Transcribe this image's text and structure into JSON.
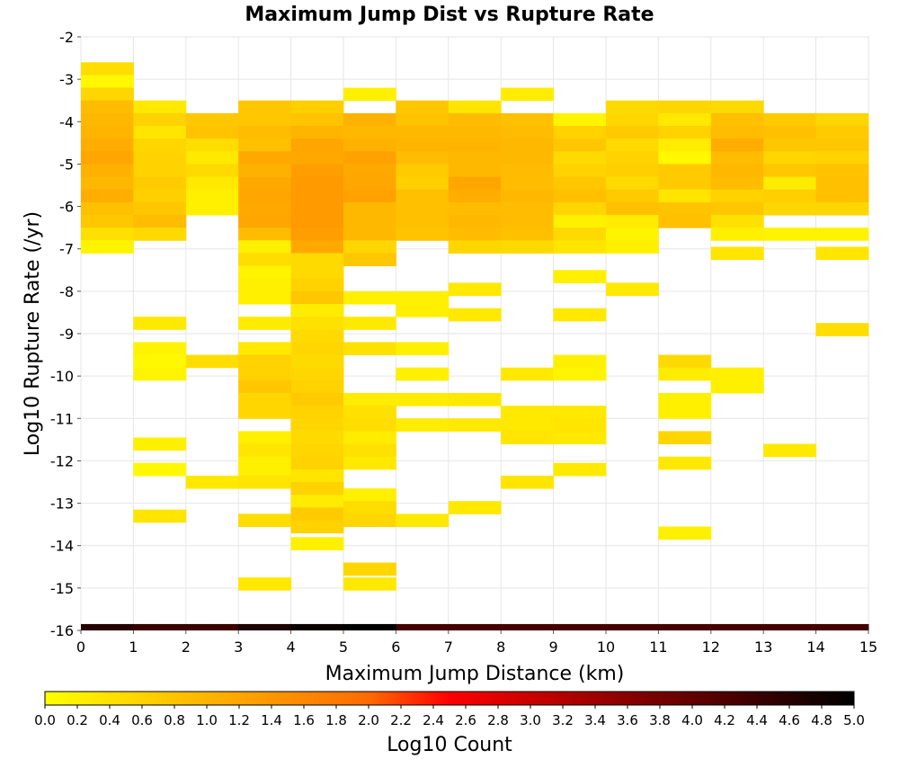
{
  "chart_data": {
    "type": "heatmap",
    "title": "Maximum Jump Dist vs Rupture Rate",
    "xlabel": "Maximum Jump Distance (km)",
    "ylabel": "Log10 Rupture Rate (/yr)",
    "xlim": [
      0,
      15
    ],
    "ylim": [
      -16,
      -2
    ],
    "x_bin_width": 1,
    "y_bin_height": 0.3,
    "grid": true,
    "xticks": [
      "0",
      "1",
      "2",
      "3",
      "4",
      "5",
      "6",
      "7",
      "8",
      "9",
      "10",
      "11",
      "12",
      "13",
      "14",
      "15"
    ],
    "yticks": [
      "-2",
      "-3",
      "-4",
      "-5",
      "-6",
      "-7",
      "-8",
      "-9",
      "-10",
      "-11",
      "-12",
      "-13",
      "-14",
      "-15",
      "-16"
    ],
    "colorbar": {
      "label": "Log10 Count",
      "range": [
        0,
        5
      ],
      "ticks": [
        "0.0",
        "0.2",
        "0.4",
        "0.6",
        "0.8",
        "1.0",
        "1.2",
        "1.4",
        "1.6",
        "1.8",
        "2.0",
        "2.2",
        "2.4",
        "2.6",
        "2.8",
        "3.0",
        "3.2",
        "3.4",
        "3.6",
        "3.8",
        "4.0",
        "4.2",
        "4.4",
        "4.6",
        "4.8",
        "5.0"
      ],
      "placement": "bottom"
    },
    "columns": [
      {
        "x0": 0,
        "cells": [
          [
            -2.75,
            0.45
          ],
          [
            -3.05,
            0.1
          ],
          [
            -3.35,
            0.55
          ],
          [
            -3.65,
            0.9
          ],
          [
            -3.95,
            0.95
          ],
          [
            -4.25,
            1.0
          ],
          [
            -4.55,
            1.1
          ],
          [
            -4.85,
            1.2
          ],
          [
            -5.15,
            1.05
          ],
          [
            -5.45,
            0.95
          ],
          [
            -5.75,
            1.1
          ],
          [
            -6.05,
            0.85
          ],
          [
            -6.35,
            0.75
          ],
          [
            -6.65,
            0.4
          ],
          [
            -6.95,
            0.15
          ]
        ]
      },
      {
        "x0": 1,
        "cells": [
          [
            -3.65,
            0.3
          ],
          [
            -3.95,
            0.6
          ],
          [
            -4.25,
            0.35
          ],
          [
            -4.55,
            0.55
          ],
          [
            -4.85,
            0.6
          ],
          [
            -5.15,
            0.6
          ],
          [
            -5.45,
            0.7
          ],
          [
            -5.75,
            0.65
          ],
          [
            -6.05,
            0.75
          ],
          [
            -6.35,
            0.9
          ],
          [
            -6.65,
            0.5
          ],
          [
            -8.75,
            0.3
          ],
          [
            -9.35,
            0.15
          ],
          [
            -9.65,
            0.1
          ],
          [
            -9.95,
            0.15
          ],
          [
            -11.6,
            0.2
          ],
          [
            -12.2,
            0.1
          ],
          [
            -13.3,
            0.35
          ]
        ]
      },
      {
        "x0": 2,
        "cells": [
          [
            -3.95,
            0.75
          ],
          [
            -4.25,
            0.8
          ],
          [
            -4.55,
            0.45
          ],
          [
            -4.85,
            0.3
          ],
          [
            -5.15,
            0.5
          ],
          [
            -5.45,
            0.3
          ],
          [
            -5.75,
            0.2
          ],
          [
            -6.05,
            0.2
          ],
          [
            -9.65,
            0.45
          ],
          [
            -12.5,
            0.3
          ]
        ]
      },
      {
        "x0": 3,
        "cells": [
          [
            -3.65,
            0.75
          ],
          [
            -3.95,
            0.75
          ],
          [
            -4.25,
            0.9
          ],
          [
            -4.55,
            0.85
          ],
          [
            -4.85,
            1.15
          ],
          [
            -5.15,
            1.05
          ],
          [
            -5.45,
            1.15
          ],
          [
            -5.75,
            1.2
          ],
          [
            -6.05,
            1.15
          ],
          [
            -6.35,
            1.2
          ],
          [
            -6.65,
            0.9
          ],
          [
            -6.95,
            0.2
          ],
          [
            -7.25,
            0.45
          ],
          [
            -7.55,
            0.15
          ],
          [
            -7.85,
            0.2
          ],
          [
            -8.15,
            0.2
          ],
          [
            -8.75,
            0.25
          ],
          [
            -9.35,
            0.3
          ],
          [
            -9.65,
            0.6
          ],
          [
            -9.95,
            0.6
          ],
          [
            -10.25,
            0.75
          ],
          [
            -10.55,
            0.55
          ],
          [
            -10.85,
            0.55
          ],
          [
            -11.45,
            0.2
          ],
          [
            -11.75,
            0.35
          ],
          [
            -12.05,
            0.2
          ],
          [
            -12.35,
            0.2
          ],
          [
            -12.5,
            0.35
          ],
          [
            -13.4,
            0.45
          ],
          [
            -14.9,
            0.3
          ]
        ]
      },
      {
        "x0": 4,
        "cells": [
          [
            -3.65,
            0.65
          ],
          [
            -3.95,
            0.8
          ],
          [
            -4.25,
            1.0
          ],
          [
            -4.55,
            1.2
          ],
          [
            -4.85,
            1.15
          ],
          [
            -5.15,
            1.3
          ],
          [
            -5.45,
            1.35
          ],
          [
            -5.75,
            1.35
          ],
          [
            -6.05,
            1.35
          ],
          [
            -6.35,
            1.35
          ],
          [
            -6.65,
            1.3
          ],
          [
            -6.95,
            1.15
          ],
          [
            -7.25,
            0.5
          ],
          [
            -7.55,
            0.5
          ],
          [
            -7.85,
            0.6
          ],
          [
            -8.15,
            0.75
          ],
          [
            -8.45,
            0.25
          ],
          [
            -8.75,
            0.4
          ],
          [
            -9.05,
            0.5
          ],
          [
            -9.35,
            0.55
          ],
          [
            -9.65,
            0.5
          ],
          [
            -9.95,
            0.55
          ],
          [
            -10.25,
            0.6
          ],
          [
            -10.55,
            0.7
          ],
          [
            -10.85,
            0.6
          ],
          [
            -11.15,
            0.55
          ],
          [
            -11.45,
            0.5
          ],
          [
            -11.75,
            0.55
          ],
          [
            -12.05,
            0.6
          ],
          [
            -12.35,
            0.35
          ],
          [
            -12.65,
            0.6
          ],
          [
            -12.95,
            0.25
          ],
          [
            -13.25,
            0.7
          ],
          [
            -13.55,
            0.6
          ],
          [
            -13.95,
            0.2
          ]
        ]
      },
      {
        "x0": 5,
        "cells": [
          [
            -3.35,
            0.2
          ],
          [
            -3.95,
            1.05
          ],
          [
            -4.25,
            0.95
          ],
          [
            -4.55,
            1.05
          ],
          [
            -4.85,
            1.25
          ],
          [
            -5.15,
            1.15
          ],
          [
            -5.45,
            1.2
          ],
          [
            -5.75,
            1.25
          ],
          [
            -6.05,
            0.95
          ],
          [
            -6.35,
            0.95
          ],
          [
            -6.65,
            0.95
          ],
          [
            -6.95,
            0.55
          ],
          [
            -7.25,
            0.75
          ],
          [
            -8.15,
            0.2
          ],
          [
            -8.75,
            0.3
          ],
          [
            -9.35,
            0.4
          ],
          [
            -10.55,
            0.25
          ],
          [
            -10.85,
            0.4
          ],
          [
            -11.15,
            0.45
          ],
          [
            -11.45,
            0.25
          ],
          [
            -11.75,
            0.4
          ],
          [
            -12.05,
            0.3
          ],
          [
            -12.8,
            0.2
          ],
          [
            -13.1,
            0.45
          ],
          [
            -13.4,
            0.55
          ],
          [
            -14.55,
            0.55
          ],
          [
            -14.9,
            0.3
          ]
        ]
      },
      {
        "x0": 6,
        "cells": [
          [
            -3.65,
            0.75
          ],
          [
            -3.95,
            0.8
          ],
          [
            -4.25,
            0.95
          ],
          [
            -4.55,
            1.0
          ],
          [
            -4.85,
            0.9
          ],
          [
            -5.15,
            0.7
          ],
          [
            -5.45,
            0.65
          ],
          [
            -5.75,
            0.85
          ],
          [
            -6.05,
            0.85
          ],
          [
            -6.35,
            0.85
          ],
          [
            -6.65,
            0.8
          ],
          [
            -8.15,
            0.2
          ],
          [
            -8.45,
            0.2
          ],
          [
            -9.35,
            0.2
          ],
          [
            -9.95,
            0.2
          ],
          [
            -10.55,
            0.25
          ],
          [
            -11.15,
            0.25
          ],
          [
            -13.4,
            0.3
          ]
        ]
      },
      {
        "x0": 7,
        "cells": [
          [
            -3.65,
            0.35
          ],
          [
            -3.95,
            0.9
          ],
          [
            -4.25,
            0.95
          ],
          [
            -4.55,
            1.0
          ],
          [
            -4.85,
            0.95
          ],
          [
            -5.15,
            0.95
          ],
          [
            -5.45,
            1.2
          ],
          [
            -5.75,
            1.1
          ],
          [
            -6.05,
            0.9
          ],
          [
            -6.35,
            0.95
          ],
          [
            -6.65,
            0.9
          ],
          [
            -6.95,
            0.55
          ],
          [
            -7.95,
            0.3
          ],
          [
            -8.55,
            0.3
          ],
          [
            -10.55,
            0.3
          ],
          [
            -11.15,
            0.3
          ],
          [
            -13.1,
            0.3
          ]
        ]
      },
      {
        "x0": 8,
        "cells": [
          [
            -3.35,
            0.25
          ],
          [
            -3.95,
            0.85
          ],
          [
            -4.25,
            0.9
          ],
          [
            -4.55,
            0.95
          ],
          [
            -4.85,
            0.95
          ],
          [
            -5.15,
            0.9
          ],
          [
            -5.45,
            0.9
          ],
          [
            -5.75,
            0.95
          ],
          [
            -6.05,
            0.9
          ],
          [
            -6.35,
            0.9
          ],
          [
            -6.65,
            0.85
          ],
          [
            -6.95,
            0.5
          ],
          [
            -9.95,
            0.3
          ],
          [
            -10.85,
            0.3
          ],
          [
            -11.15,
            0.3
          ],
          [
            -11.45,
            0.35
          ],
          [
            -12.5,
            0.35
          ]
        ]
      },
      {
        "x0": 9,
        "cells": [
          [
            -3.95,
            0.15
          ],
          [
            -4.25,
            0.6
          ],
          [
            -4.55,
            0.75
          ],
          [
            -4.85,
            0.5
          ],
          [
            -5.15,
            0.6
          ],
          [
            -5.45,
            0.75
          ],
          [
            -5.75,
            0.85
          ],
          [
            -6.05,
            0.55
          ],
          [
            -6.35,
            0.2
          ],
          [
            -6.65,
            0.5
          ],
          [
            -6.95,
            0.35
          ],
          [
            -7.65,
            0.2
          ],
          [
            -8.55,
            0.3
          ],
          [
            -9.65,
            0.2
          ],
          [
            -9.95,
            0.15
          ],
          [
            -10.85,
            0.3
          ],
          [
            -11.15,
            0.35
          ],
          [
            -11.45,
            0.3
          ],
          [
            -12.2,
            0.3
          ]
        ]
      },
      {
        "x0": 10,
        "cells": [
          [
            -3.65,
            0.5
          ],
          [
            -3.95,
            0.55
          ],
          [
            -4.25,
            0.7
          ],
          [
            -4.55,
            0.5
          ],
          [
            -4.85,
            0.6
          ],
          [
            -5.15,
            0.65
          ],
          [
            -5.45,
            0.5
          ],
          [
            -5.75,
            0.7
          ],
          [
            -6.05,
            0.85
          ],
          [
            -6.35,
            0.25
          ],
          [
            -6.65,
            0.15
          ],
          [
            -6.95,
            0.2
          ],
          [
            -7.95,
            0.3
          ]
        ]
      },
      {
        "x0": 11,
        "cells": [
          [
            -3.65,
            0.55
          ],
          [
            -3.95,
            0.3
          ],
          [
            -4.25,
            0.6
          ],
          [
            -4.55,
            0.25
          ],
          [
            -4.85,
            0.1
          ],
          [
            -5.15,
            0.7
          ],
          [
            -5.45,
            0.7
          ],
          [
            -5.75,
            0.35
          ],
          [
            -6.05,
            0.8
          ],
          [
            -6.35,
            0.85
          ],
          [
            -9.65,
            0.5
          ],
          [
            -9.95,
            0.25
          ],
          [
            -10.55,
            0.2
          ],
          [
            -10.85,
            0.2
          ],
          [
            -11.45,
            0.55
          ],
          [
            -12.05,
            0.3
          ],
          [
            -13.7,
            0.2
          ]
        ]
      },
      {
        "x0": 12,
        "cells": [
          [
            -3.65,
            0.5
          ],
          [
            -3.95,
            0.85
          ],
          [
            -4.25,
            0.9
          ],
          [
            -4.55,
            1.1
          ],
          [
            -4.85,
            0.9
          ],
          [
            -5.15,
            0.95
          ],
          [
            -5.45,
            0.9
          ],
          [
            -5.75,
            0.6
          ],
          [
            -6.05,
            0.75
          ],
          [
            -6.35,
            0.4
          ],
          [
            -6.65,
            0.2
          ],
          [
            -7.1,
            0.35
          ],
          [
            -9.95,
            0.2
          ],
          [
            -10.25,
            0.2
          ]
        ]
      },
      {
        "x0": 13,
        "cells": [
          [
            -3.95,
            0.7
          ],
          [
            -4.25,
            0.85
          ],
          [
            -4.55,
            0.75
          ],
          [
            -4.85,
            0.55
          ],
          [
            -5.15,
            0.75
          ],
          [
            -5.45,
            0.25
          ],
          [
            -5.75,
            0.65
          ],
          [
            -6.05,
            0.55
          ],
          [
            -6.65,
            0.15
          ],
          [
            -11.75,
            0.3
          ]
        ]
      },
      {
        "x0": 14,
        "cells": [
          [
            -3.95,
            0.55
          ],
          [
            -4.25,
            0.7
          ],
          [
            -4.55,
            0.75
          ],
          [
            -4.85,
            0.6
          ],
          [
            -5.15,
            0.8
          ],
          [
            -5.45,
            0.85
          ],
          [
            -5.75,
            0.85
          ],
          [
            -6.05,
            0.55
          ],
          [
            -6.65,
            0.15
          ],
          [
            -7.1,
            0.35
          ],
          [
            -8.9,
            0.45
          ]
        ]
      }
    ],
    "bottom_strip": [
      {
        "x0": 0,
        "x1": 1,
        "value": 4.6
      },
      {
        "x0": 1,
        "x1": 2,
        "value": 4.4
      },
      {
        "x0": 2,
        "x1": 3,
        "value": 4.4
      },
      {
        "x0": 3,
        "x1": 4,
        "value": 4.7
      },
      {
        "x0": 4,
        "x1": 5,
        "value": 4.9
      },
      {
        "x0": 5,
        "x1": 6,
        "value": 5.0
      },
      {
        "x0": 6,
        "x1": 7,
        "value": 4.3
      },
      {
        "x0": 7,
        "x1": 8,
        "value": 4.3
      },
      {
        "x0": 8,
        "x1": 9,
        "value": 4.3
      },
      {
        "x0": 9,
        "x1": 10,
        "value": 4.3
      },
      {
        "x0": 10,
        "x1": 11,
        "value": 4.3
      },
      {
        "x0": 11,
        "x1": 12,
        "value": 4.3
      },
      {
        "x0": 12,
        "x1": 13,
        "value": 4.3
      },
      {
        "x0": 13,
        "x1": 14,
        "value": 4.3
      },
      {
        "x0": 14,
        "x1": 15,
        "value": 4.3
      }
    ]
  }
}
